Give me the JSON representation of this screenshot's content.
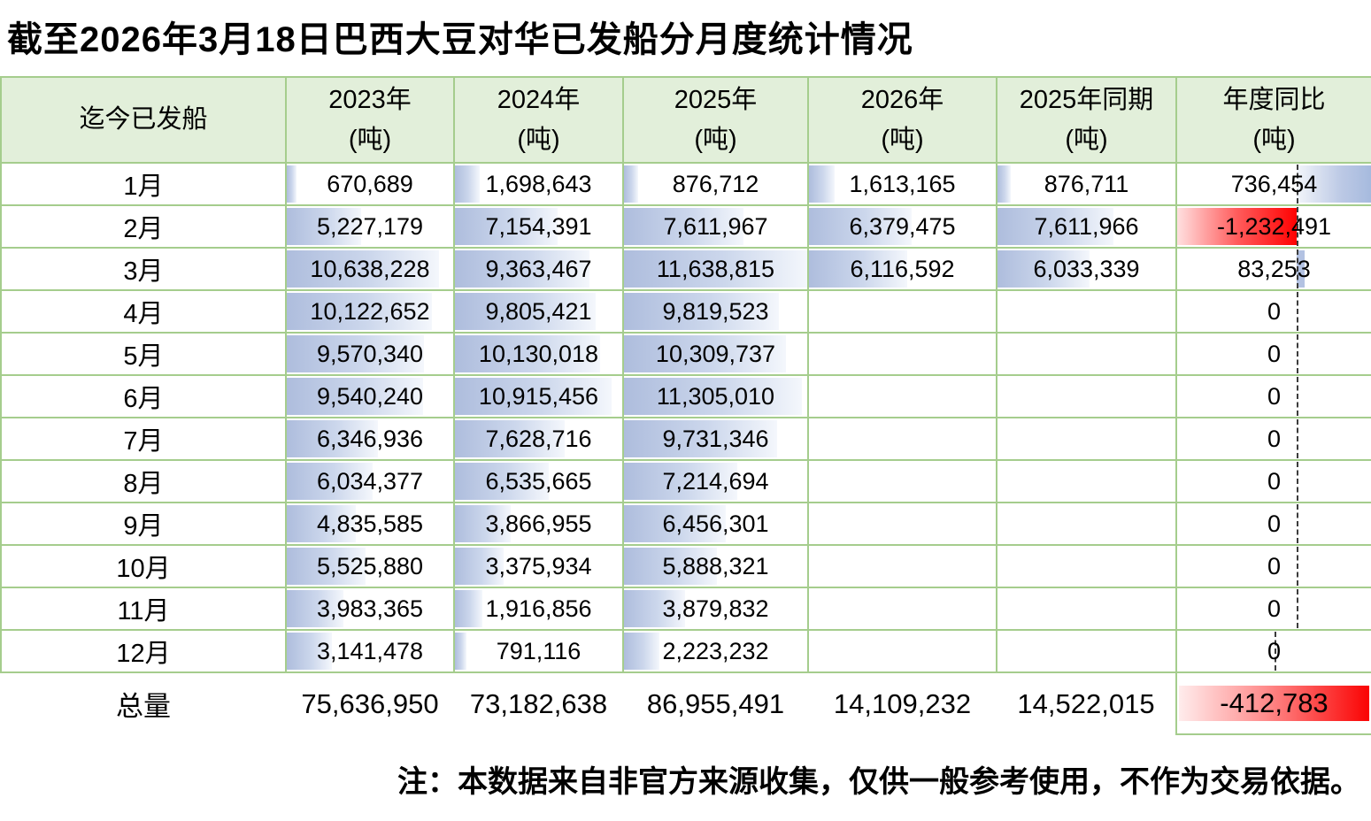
{
  "title": "截至2026年3月18日巴西大豆对华已发船分月度统计情况",
  "note": "注：本数据来自非官方来源收集，仅供一般参考使用，不作为交易依据。",
  "table": {
    "header": {
      "col0": "迄今已发船",
      "unit": "(吨)",
      "year_cols": [
        {
          "key": "y2023",
          "line1": "2023年",
          "line2": "(吨)"
        },
        {
          "key": "y2024",
          "line1": "2024年",
          "line2": "(吨)"
        },
        {
          "key": "y2025",
          "line1": "2025年",
          "line2": "(吨)"
        },
        {
          "key": "y2026",
          "line1": "2026年",
          "line2": "(吨)"
        },
        {
          "key": "same2025",
          "line1": "2025年同期",
          "line2": "(吨)"
        },
        {
          "key": "yoy",
          "line1": "年度同比",
          "line2": "(吨)"
        }
      ]
    },
    "rows": [
      {
        "label": "1月",
        "values": [
          "670,689",
          "1,698,643",
          "876,712",
          "1,613,165",
          "876,711",
          "736,454"
        ]
      },
      {
        "label": "2月",
        "values": [
          "5,227,179",
          "7,154,391",
          "7,611,967",
          "6,379,475",
          "7,611,966",
          "-1,232,491"
        ]
      },
      {
        "label": "3月",
        "values": [
          "10,638,228",
          "9,363,467",
          "11,638,815",
          "6,116,592",
          "6,033,339",
          "83,253"
        ]
      },
      {
        "label": "4月",
        "values": [
          "10,122,652",
          "9,805,421",
          "9,819,523",
          "",
          "",
          "0"
        ]
      },
      {
        "label": "5月",
        "values": [
          "9,570,340",
          "10,130,018",
          "10,309,737",
          "",
          "",
          "0"
        ]
      },
      {
        "label": "6月",
        "values": [
          "9,540,240",
          "10,915,456",
          "11,305,010",
          "",
          "",
          "0"
        ]
      },
      {
        "label": "7月",
        "values": [
          "6,346,936",
          "7,628,716",
          "9,731,346",
          "",
          "",
          "0"
        ]
      },
      {
        "label": "8月",
        "values": [
          "6,034,377",
          "6,535,665",
          "7,214,694",
          "",
          "",
          "0"
        ]
      },
      {
        "label": "9月",
        "values": [
          "4,835,585",
          "3,866,955",
          "6,456,301",
          "",
          "",
          "0"
        ]
      },
      {
        "label": "10月",
        "values": [
          "5,525,880",
          "3,375,934",
          "5,888,321",
          "",
          "",
          "0"
        ]
      },
      {
        "label": "11月",
        "values": [
          "3,983,365",
          "1,916,856",
          "3,879,832",
          "",
          "",
          "0"
        ]
      },
      {
        "label": "12月",
        "values": [
          "3,141,478",
          "791,116",
          "2,223,232",
          "",
          "",
          "0"
        ]
      }
    ],
    "total": {
      "label": "总量",
      "values": [
        "75,636,950",
        "73,182,638",
        "86,955,491",
        "14,109,232",
        "14,522,015",
        "-412,783"
      ]
    }
  },
  "data_bars": {
    "value_scale_max": 11638815,
    "yoy_axis_pct": 61.5,
    "yoy_axis_last_row_pct": 50,
    "yoy_pos_max": 736454,
    "yoy_neg_max": 1232491,
    "bar_blue": "#aebddd",
    "bar_red": "#ff0202",
    "grid_green": "#a5cd8d",
    "header_fill": "#e2efda"
  },
  "chart_data": {
    "type": "table",
    "title": "截至2026年3月18日巴西大豆对华已发船分月度统计情况",
    "categories": [
      "1月",
      "2月",
      "3月",
      "4月",
      "5月",
      "6月",
      "7月",
      "8月",
      "9月",
      "10月",
      "11月",
      "12月"
    ],
    "series": [
      {
        "name": "2023年(吨)",
        "values": [
          670689,
          5227179,
          10638228,
          10122652,
          9570340,
          9540240,
          6346936,
          6034377,
          4835585,
          5525880,
          3983365,
          3141478
        ],
        "total": 75636950
      },
      {
        "name": "2024年(吨)",
        "values": [
          1698643,
          7154391,
          9363467,
          9805421,
          10130018,
          10915456,
          7628716,
          6535665,
          3866955,
          3375934,
          1916856,
          791116
        ],
        "total": 73182638
      },
      {
        "name": "2025年(吨)",
        "values": [
          876712,
          7611967,
          11638815,
          9819523,
          10309737,
          11305010,
          9731346,
          7214694,
          6456301,
          5888321,
          3879832,
          2223232
        ],
        "total": 86955491
      },
      {
        "name": "2026年(吨)",
        "values": [
          1613165,
          6379475,
          6116592,
          null,
          null,
          null,
          null,
          null,
          null,
          null,
          null,
          null
        ],
        "total": 14109232
      },
      {
        "name": "2025年同期(吨)",
        "values": [
          876711,
          7611966,
          6033339,
          null,
          null,
          null,
          null,
          null,
          null,
          null,
          null,
          null
        ],
        "total": 14522015
      },
      {
        "name": "年度同比(吨)",
        "values": [
          736454,
          -1232491,
          83253,
          0,
          0,
          0,
          0,
          0,
          0,
          0,
          0,
          0
        ],
        "total": -412783
      }
    ],
    "note": "注：本数据来自非官方来源收集，仅供一般参考使用，不作为交易依据。"
  }
}
